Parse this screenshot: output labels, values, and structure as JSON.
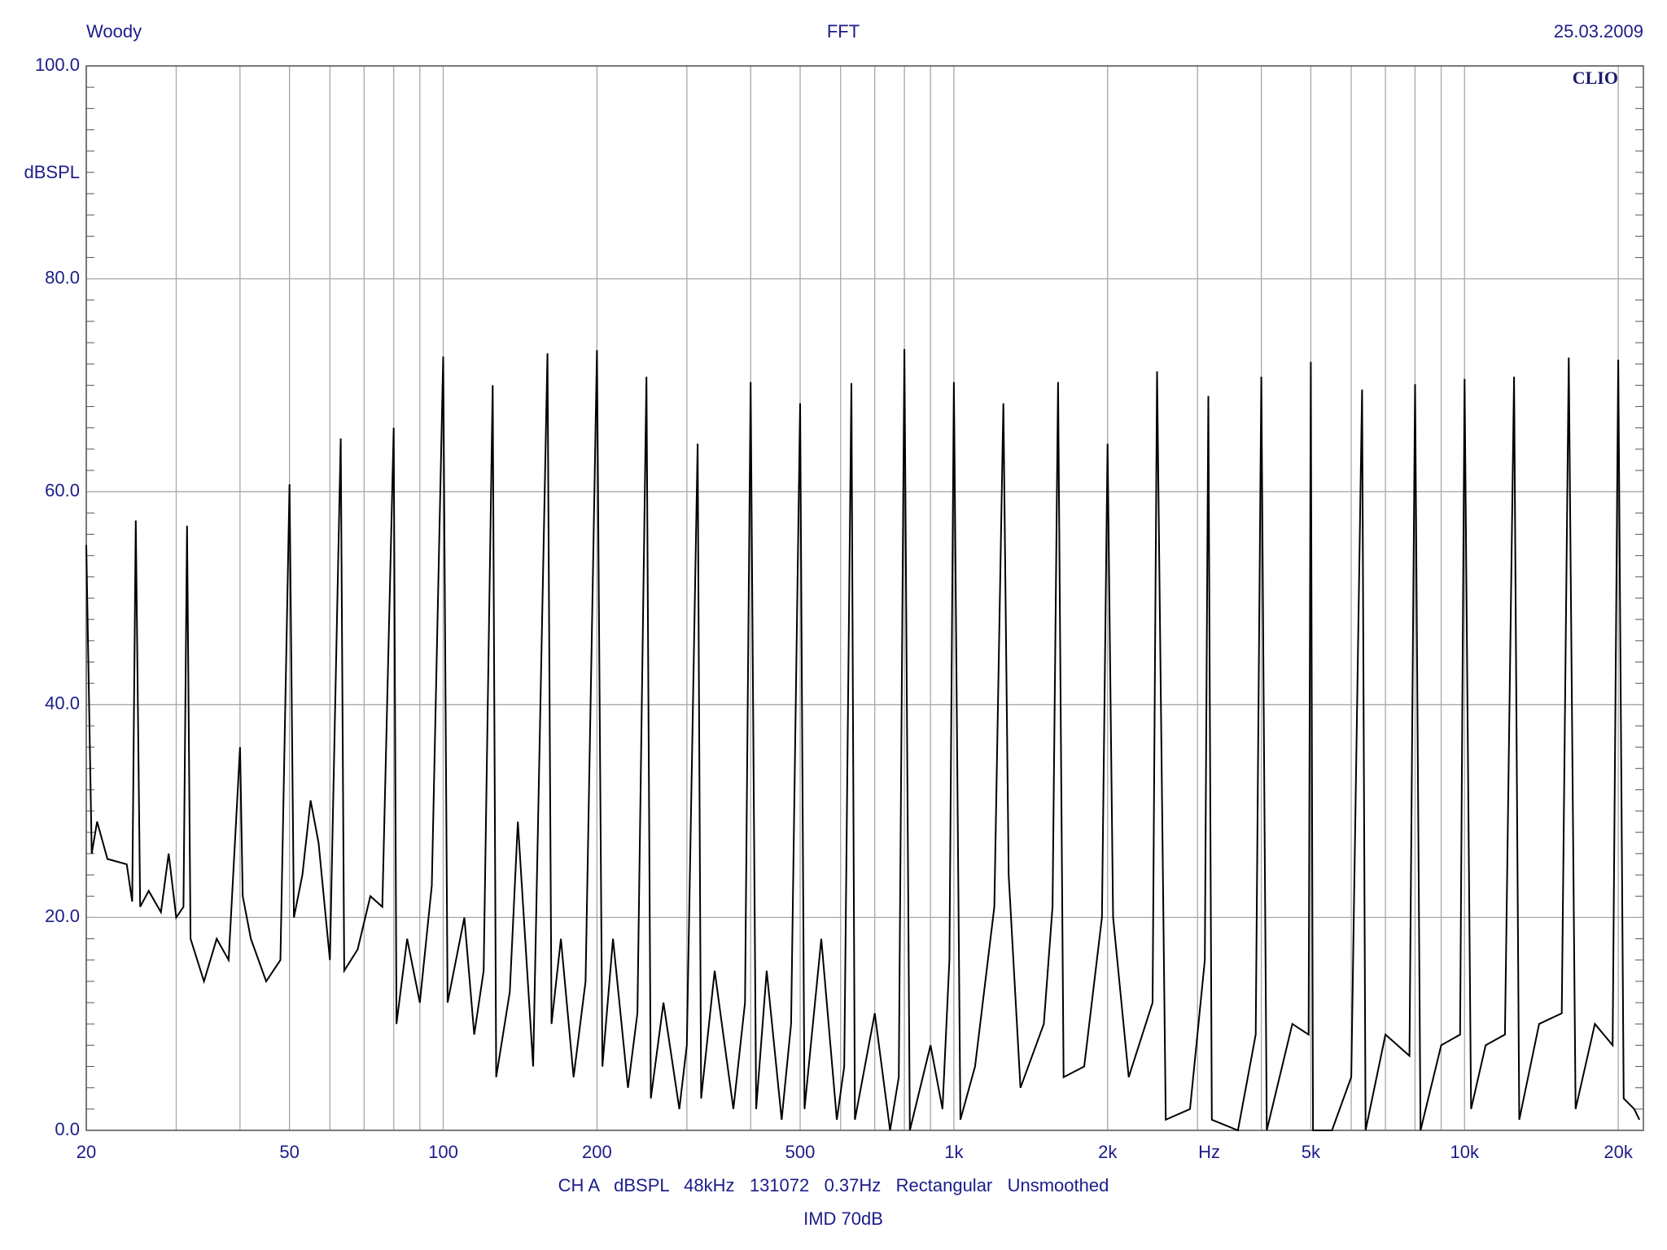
{
  "chart_data": {
    "type": "line",
    "header_left": "Woody",
    "title": "FFT",
    "header_right": "25.03.2009",
    "brand": "CLIO",
    "ylabel": "dBSPL",
    "xlabel": "Hz",
    "footer": "CH A   dBSPL   48kHz   131072   0.37Hz   Rectangular   Unsmoothed",
    "footer2": "IMD 70dB",
    "xscale": "log",
    "grid": true,
    "xlim": [
      20,
      22400
    ],
    "ylim": [
      0,
      100
    ],
    "xticks": [
      20,
      50,
      100,
      200,
      500,
      {
        "value": 1000,
        "label": "1k"
      },
      {
        "value": 2000,
        "label": "2k"
      },
      {
        "value": 5000,
        "label": "5k"
      },
      {
        "value": 10000,
        "label": "10k"
      },
      {
        "value": 20000,
        "label": "20k"
      }
    ],
    "xminor_ticks": [
      30,
      40,
      60,
      70,
      80,
      90,
      300,
      400,
      600,
      700,
      800,
      900,
      3000,
      4000,
      6000,
      7000,
      8000,
      9000
    ],
    "yticks": [
      {
        "value": 0,
        "label": "0.0"
      },
      {
        "value": 20,
        "label": "20.0"
      },
      {
        "value": 40,
        "label": "40.0"
      },
      {
        "value": 60,
        "label": "60.0"
      },
      {
        "value": 80,
        "label": "80.0"
      },
      {
        "value": 100,
        "label": "100.0"
      }
    ],
    "yminor_step": 2,
    "x": [
      20,
      20.5,
      21,
      22,
      24,
      24.6,
      25,
      25.5,
      26.5,
      28,
      29,
      30,
      31,
      31.5,
      32,
      34,
      36,
      38,
      40,
      40.5,
      42,
      45,
      48,
      50,
      51,
      53,
      55,
      57,
      60,
      63,
      64,
      68,
      72,
      76,
      80,
      81,
      85,
      90,
      95,
      100,
      102,
      110,
      115,
      120,
      125,
      127,
      135,
      140,
      150,
      160,
      163,
      170,
      180,
      190,
      200,
      205,
      215,
      230,
      240,
      250,
      255,
      270,
      290,
      300,
      315,
      320,
      340,
      370,
      390,
      400,
      410,
      430,
      460,
      480,
      500,
      510,
      550,
      590,
      610,
      630,
      640,
      700,
      750,
      780,
      800,
      820,
      900,
      950,
      980,
      1000,
      1030,
      1100,
      1200,
      1250,
      1280,
      1350,
      1500,
      1560,
      1600,
      1640,
      1800,
      1950,
      2000,
      2050,
      2200,
      2450,
      2500,
      2600,
      2900,
      3100,
      3150,
      3200,
      3600,
      3900,
      4000,
      4100,
      4600,
      4950,
      5000,
      5050,
      5500,
      6000,
      6300,
      6400,
      7000,
      7800,
      8000,
      8200,
      9000,
      9800,
      10000,
      10300,
      11000,
      12000,
      12500,
      12800,
      14000,
      15500,
      16000,
      16500,
      18000,
      19500,
      20000,
      20500,
      21500,
      22000
    ],
    "series": [
      {
        "name": "CH A",
        "color": "#000000",
        "values": [
          55,
          26,
          29,
          25.5,
          25,
          21.5,
          57.3,
          21,
          22.5,
          20.5,
          26,
          20,
          21,
          56.8,
          18,
          14,
          18,
          16,
          36,
          22,
          18,
          14,
          16,
          60.7,
          20,
          24,
          31,
          27,
          16,
          65,
          15,
          17,
          22,
          21,
          66,
          10,
          18,
          12,
          23,
          72.7,
          12,
          20,
          9,
          15,
          70,
          5,
          13,
          29,
          6,
          73,
          10,
          18,
          5,
          14,
          73.3,
          6,
          18,
          4,
          11,
          70.8,
          3,
          12,
          2,
          8,
          64.5,
          3,
          15,
          2,
          12,
          70.3,
          2,
          15,
          1,
          10,
          68.3,
          2,
          18,
          1,
          6,
          70.2,
          1,
          11,
          0,
          5,
          73.4,
          0,
          8,
          2,
          16,
          70.3,
          1,
          6,
          21,
          68.3,
          24,
          4,
          10,
          21,
          70.3,
          5,
          6,
          20,
          64.5,
          20,
          5,
          12,
          71.3,
          1,
          2,
          16,
          69,
          1,
          0,
          9,
          70.8,
          0,
          10,
          9,
          72.2,
          0,
          0,
          5,
          69.6,
          0,
          9,
          7,
          70.1,
          0,
          8,
          9,
          70.6,
          2,
          8,
          9,
          70.8,
          1,
          10,
          11,
          72.6,
          2,
          10,
          8,
          72.4,
          3,
          2,
          1
        ]
      }
    ]
  }
}
